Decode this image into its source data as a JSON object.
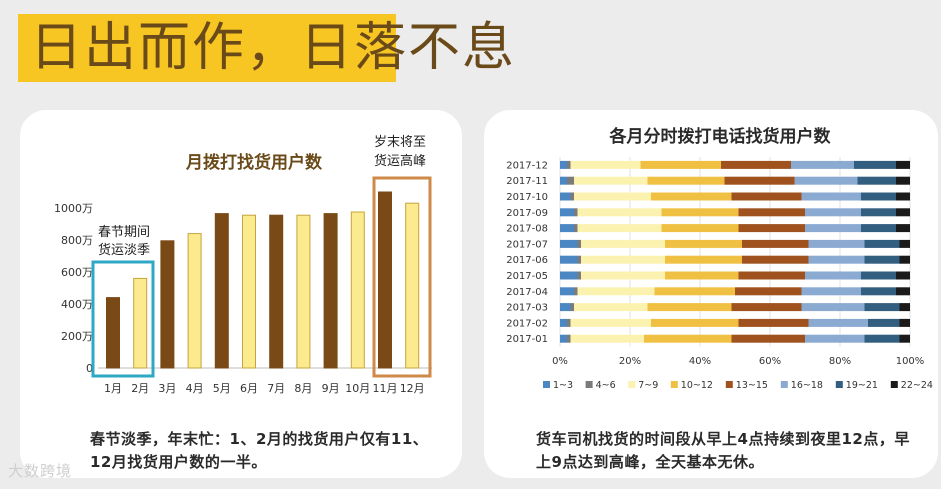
{
  "banner": {
    "title": "日出而作，日落不息"
  },
  "colors": {
    "dark": "#7a4a16",
    "light": "#fbeb8e",
    "lightStroke": "#c6a43c",
    "blueBox": "#2fa8c4",
    "orangeBox": "#cf8a4a",
    "title": "#6b4a1a"
  },
  "chart_data": [
    {
      "type": "bar",
      "title": "月拨打找货用户数",
      "categories": [
        "1月",
        "2月",
        "3月",
        "4月",
        "5月",
        "6月",
        "7月",
        "8月",
        "9月",
        "10月",
        "11月",
        "12月"
      ],
      "values": [
        440,
        560,
        795,
        840,
        965,
        955,
        955,
        955,
        965,
        975,
        1100,
        1030
      ],
      "y_ticks": [
        {
          "v": 0,
          "label": "0"
        },
        {
          "v": 200,
          "label": "200万"
        },
        {
          "v": 400,
          "label": "400万"
        },
        {
          "v": 600,
          "label": "600万"
        },
        {
          "v": 800,
          "label": "800万"
        },
        {
          "v": 1000,
          "label": "1000万"
        }
      ],
      "ylim": [
        0,
        1100
      ],
      "annotations": [
        "春节期间货运淡季",
        "岁末将至货运高峰"
      ]
    },
    {
      "type": "bar",
      "orientation": "horizontal",
      "stacked": "percent",
      "title": "各月分时拨打电话找货用户数",
      "categories": [
        "2017-12",
        "2017-11",
        "2017-10",
        "2017-09",
        "2017-08",
        "2017-07",
        "2017-06",
        "2017-05",
        "2017-04",
        "2017-03",
        "2017-02",
        "2017-01"
      ],
      "x_ticks": [
        "0%",
        "20%",
        "40%",
        "60%",
        "80%",
        "100%"
      ],
      "series": [
        {
          "name": "1~3",
          "color": "#4b87c3",
          "values": [
            2,
            2,
            3,
            4,
            4,
            5,
            5,
            5,
            4,
            3,
            2,
            2
          ]
        },
        {
          "name": "4~6",
          "color": "#7b7b7b",
          "values": [
            1,
            2,
            1,
            1,
            1,
            1,
            1,
            1,
            1,
            1,
            1,
            1
          ]
        },
        {
          "name": "7~9",
          "color": "#fbf2b0",
          "values": [
            20,
            21,
            22,
            24,
            24,
            24,
            24,
            24,
            22,
            21,
            23,
            21
          ]
        },
        {
          "name": "10~12",
          "color": "#f0c043",
          "values": [
            23,
            22,
            23,
            22,
            22,
            22,
            22,
            21,
            23,
            24,
            25,
            25
          ]
        },
        {
          "name": "13~15",
          "color": "#a0521e",
          "values": [
            20,
            20,
            20,
            19,
            19,
            19,
            19,
            19,
            19,
            20,
            20,
            21
          ]
        },
        {
          "name": "16~18",
          "color": "#8aaad2",
          "values": [
            18,
            18,
            17,
            16,
            16,
            16,
            16,
            16,
            17,
            18,
            17,
            17
          ]
        },
        {
          "name": "19~21",
          "color": "#325f80",
          "values": [
            12,
            11,
            10,
            10,
            10,
            10,
            10,
            10,
            10,
            10,
            9,
            10
          ]
        },
        {
          "name": "22~24",
          "color": "#1a1a1a",
          "values": [
            4,
            4,
            4,
            4,
            4,
            3,
            3,
            4,
            4,
            3,
            3,
            3
          ]
        }
      ]
    }
  ],
  "captions": {
    "left": "春节淡季，年末忙：1、2月的找货用户仅有11、12月找货用户数的一半。",
    "right": "货车司机找货的时间段从早上4点持续到夜里12点，早上9点达到高峰，全天基本无休。"
  },
  "watermark": "大数跨境"
}
